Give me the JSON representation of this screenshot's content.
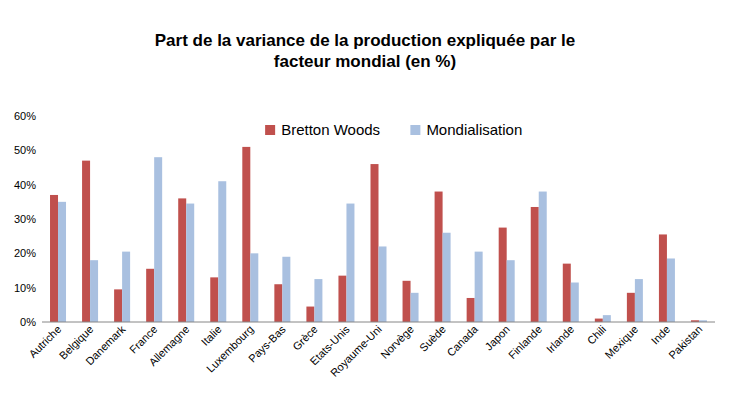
{
  "chart_data": {
    "type": "bar",
    "title": "Part de la variance de la production expliquée par le facteur mondial (en %)",
    "categories": [
      "Autriche",
      "Belgique",
      "Danemark",
      "France",
      "Allemagne",
      "Italie",
      "Luxembourg",
      "Pays-Bas",
      "Grèce",
      "Etats-Unis",
      "Royaume-Uni",
      "Norvège",
      "Suède",
      "Canada",
      "Japon",
      "Finlande",
      "Irlande",
      "Chili",
      "Mexique",
      "Inde",
      "Pakistan"
    ],
    "series": [
      {
        "name": "Bretton Woods",
        "color": "#c0504d",
        "values": [
          37,
          47,
          9.5,
          15.5,
          36,
          13,
          51,
          11,
          4.5,
          13.5,
          46,
          12,
          38,
          7,
          27.5,
          33.5,
          17,
          1,
          8.5,
          25.5,
          0.5
        ]
      },
      {
        "name": "Mondialisation",
        "color": "#a9c0e0",
        "values": [
          35,
          18,
          20.5,
          48,
          34.5,
          41,
          20,
          19,
          12.5,
          34.5,
          22,
          8.5,
          26,
          20.5,
          18,
          38,
          11.5,
          2,
          12.5,
          18.5,
          0.5
        ]
      }
    ],
    "ylim": [
      0,
      60
    ],
    "yticks": [
      {
        "value": 0,
        "label": "0%"
      },
      {
        "value": 10,
        "label": "10%"
      },
      {
        "value": 20,
        "label": "20%"
      },
      {
        "value": 30,
        "label": "30%"
      },
      {
        "value": 40,
        "label": "40%"
      },
      {
        "value": 50,
        "label": "50%"
      },
      {
        "value": 60,
        "label": "60%"
      }
    ],
    "grid": false,
    "legend": "top"
  }
}
